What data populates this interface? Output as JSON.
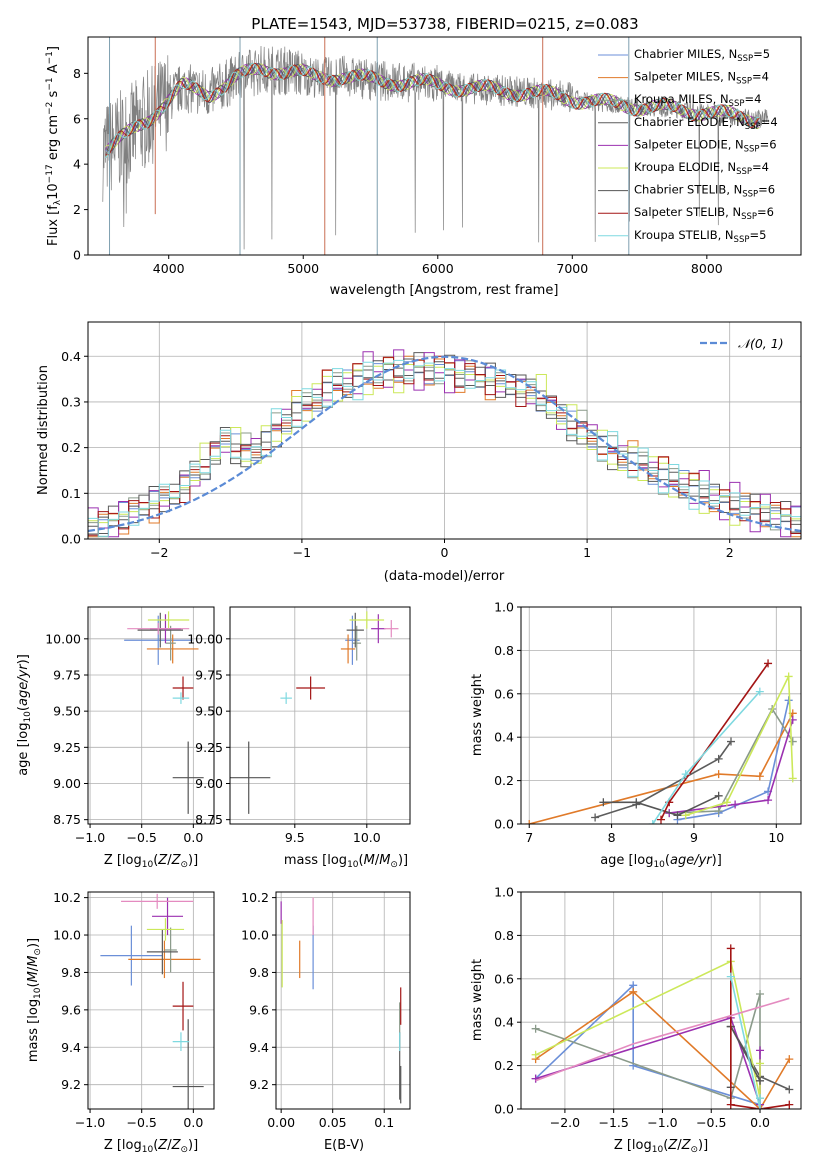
{
  "figure": {
    "title": "PLATE=1543, MJD=53738, FIBERID=0215, z=0.083"
  },
  "colors": {
    "series": [
      "#6b8fd8",
      "#e07a29",
      "#8a9a8a",
      "#5c5c5c",
      "#9b30b0",
      "#cce85a",
      "#555555",
      "#a31515",
      "#7fd9e0"
    ],
    "spectrum": "#808080",
    "gaussian": "#5b8bd6",
    "grid": "#b0b0b0"
  },
  "legend_spectrum": [
    {
      "base": "Chabrier MILES, N",
      "sub": "SSP",
      "tail": "=5"
    },
    {
      "base": "Salpeter MILES, N",
      "sub": "SSP",
      "tail": "=4"
    },
    {
      "base": "Kroupa MILES, N",
      "sub": "SSP",
      "tail": "=4"
    },
    {
      "base": "Chabrier ELODIE, N",
      "sub": "SSP",
      "tail": "=4"
    },
    {
      "base": "Salpeter ELODIE, N",
      "sub": "SSP",
      "tail": "=6"
    },
    {
      "base": "Kroupa ELODIE, N",
      "sub": "SSP",
      "tail": "=4"
    },
    {
      "base": "Chabrier STELIB, N",
      "sub": "SSP",
      "tail": "=6"
    },
    {
      "base": "Salpeter STELIB, N",
      "sub": "SSP",
      "tail": "=6"
    },
    {
      "base": "Kroupa STELIB, N",
      "sub": "SSP",
      "tail": "=5"
    }
  ],
  "legend_gaussian": "𝒩(0, 1)",
  "chart_data": [
    {
      "id": "spectrum",
      "type": "line",
      "xlabel": "wavelength [Angstrom, rest frame]",
      "ylabel": "Flux [fλ10⁻¹⁷ erg cm⁻² s⁻¹ A⁻¹]",
      "xlim": [
        3400,
        8700
      ],
      "ylim": [
        0,
        9.6
      ],
      "xticks": [
        4000,
        5000,
        6000,
        7000,
        8000
      ],
      "yticks": [
        0,
        2,
        4,
        6,
        8
      ],
      "data_x": [
        3550,
        3700,
        3850,
        3950,
        4100,
        4300,
        4500,
        4700,
        4900,
        5100,
        5300,
        5500,
        5800,
        6000,
        6300,
        6600,
        6900,
        7200,
        7400,
        7600,
        7800,
        8000,
        8200,
        8400
      ],
      "data_y": [
        4.7,
        5.3,
        6.0,
        6.6,
        7.4,
        7.1,
        7.8,
        8.2,
        8.1,
        7.8,
        7.9,
        7.7,
        7.6,
        7.5,
        7.3,
        7.2,
        7.0,
        6.7,
        6.6,
        6.5,
        6.4,
        6.3,
        6.1,
        6.0
      ]
    },
    {
      "id": "residuals",
      "type": "bar",
      "xlabel": "(data-model)/error",
      "ylabel": "Normed distribution",
      "xlim": [
        -2.5,
        2.5
      ],
      "ylim": [
        0,
        0.475
      ],
      "xticks": [
        -2,
        -1,
        0,
        1,
        2
      ],
      "yticks": [
        0.0,
        0.1,
        0.2,
        0.3,
        0.4
      ],
      "bin_width": 0.1,
      "bin_start": -2.5,
      "values": [
        0.03,
        0.03,
        0.04,
        0.05,
        0.06,
        0.07,
        0.08,
        0.09,
        0.1,
        0.12,
        0.14,
        0.16,
        0.19,
        0.22,
        0.2,
        0.19,
        0.19,
        0.21,
        0.24,
        0.26,
        0.28,
        0.29,
        0.31,
        0.33,
        0.34,
        0.34,
        0.35,
        0.36,
        0.36,
        0.37,
        0.37,
        0.37,
        0.37,
        0.37,
        0.37,
        0.37,
        0.36,
        0.36,
        0.35,
        0.35,
        0.34,
        0.34,
        0.33,
        0.32,
        0.31,
        0.29,
        0.27,
        0.25,
        0.24,
        0.22,
        0.2,
        0.19,
        0.18,
        0.17,
        0.16,
        0.15,
        0.14,
        0.13,
        0.12,
        0.11,
        0.1,
        0.09,
        0.08,
        0.08,
        0.07,
        0.06,
        0.06,
        0.05,
        0.05,
        0.04
      ],
      "series_offsets": [
        0.0,
        0.015,
        -0.012,
        0.008,
        -0.02,
        0.02,
        -0.005,
        0.01,
        -0.015
      ]
    },
    {
      "id": "age-vs-Z",
      "type": "scatter",
      "xlabel": "Z [log10(Z/Z⊙)]",
      "ylabel": "age [log10(age/yr)]",
      "xlim": [
        -1.02,
        0.2
      ],
      "ylim": [
        8.72,
        10.22
      ],
      "xticks": [
        -1.0,
        -0.5,
        0.0
      ],
      "yticks": [
        8.75,
        9.0,
        9.25,
        9.5,
        9.75,
        10.0
      ],
      "points": [
        {
          "x": -0.34,
          "y": 9.99,
          "xerr": 0.33,
          "yerr": 0.17
        },
        {
          "x": -0.2,
          "y": 9.93,
          "xerr": 0.25,
          "yerr": 0.1
        },
        {
          "x": -0.22,
          "y": 9.97,
          "xerr": 0.05,
          "yerr": 0.12
        },
        {
          "x": -0.32,
          "y": 10.06,
          "xerr": 0.22,
          "yerr": 0.12
        },
        {
          "x": -0.27,
          "y": 10.07,
          "xerr": 0.15,
          "yerr": 0.1
        },
        {
          "x": -0.24,
          "y": 10.13,
          "xerr": 0.2,
          "yerr": 0.06
        },
        {
          "x": -0.05,
          "y": 9.04,
          "xerr": 0.15,
          "yerr": 0.25
        },
        {
          "x": -0.1,
          "y": 9.66,
          "xerr": 0.1,
          "yerr": 0.08
        },
        {
          "x": -0.12,
          "y": 9.59,
          "xerr": 0.08,
          "yerr": 0.04
        },
        {
          "x": -0.34,
          "y": 10.07,
          "xerr": 0.3,
          "yerr": 0.04
        }
      ]
    },
    {
      "id": "age-vs-mass",
      "type": "scatter",
      "xlabel": "mass [log10(M/M⊙)]",
      "ylabel": "",
      "xlim": [
        9.05,
        10.3
      ],
      "ylim": [
        8.72,
        10.22
      ],
      "xticks": [
        9.5,
        10.0
      ],
      "yticks": [
        8.75,
        9.0,
        9.25,
        9.5,
        9.75,
        10.0
      ],
      "points": [
        {
          "x": 9.9,
          "y": 9.99,
          "xerr": 0.05,
          "yerr": 0.17
        },
        {
          "x": 9.87,
          "y": 9.93,
          "xerr": 0.05,
          "yerr": 0.1
        },
        {
          "x": 9.93,
          "y": 9.97,
          "xerr": 0.03,
          "yerr": 0.12
        },
        {
          "x": 9.92,
          "y": 10.06,
          "xerr": 0.06,
          "yerr": 0.12
        },
        {
          "x": 10.08,
          "y": 10.07,
          "xerr": 0.05,
          "yerr": 0.1
        },
        {
          "x": 10.0,
          "y": 10.13,
          "xerr": 0.12,
          "yerr": 0.06
        },
        {
          "x": 9.18,
          "y": 9.04,
          "xerr": 0.15,
          "yerr": 0.25
        },
        {
          "x": 9.61,
          "y": 9.66,
          "xerr": 0.1,
          "yerr": 0.08
        },
        {
          "x": 9.44,
          "y": 9.59,
          "xerr": 0.04,
          "yerr": 0.04
        },
        {
          "x": 10.17,
          "y": 10.07,
          "xerr": 0.05,
          "yerr": 0.06
        }
      ]
    },
    {
      "id": "weight-vs-age",
      "type": "line",
      "xlabel": "age [log10(age/yr)]",
      "ylabel": "mass weight",
      "xlim": [
        6.9,
        10.3
      ],
      "ylim": [
        0,
        1.0
      ],
      "xticks": [
        7,
        8,
        9,
        10
      ],
      "yticks": [
        0.0,
        0.2,
        0.4,
        0.6,
        0.8,
        1.0
      ],
      "series": [
        {
          "x": [
            8.8,
            9.3,
            9.9,
            10.15
          ],
          "y": [
            0.02,
            0.05,
            0.15,
            0.57
          ]
        },
        {
          "x": [
            7.0,
            9.3,
            9.8,
            10.2
          ],
          "y": [
            0.0,
            0.23,
            0.22,
            0.51
          ]
        },
        {
          "x": [
            8.7,
            9.3,
            9.95,
            10.2
          ],
          "y": [
            0.05,
            0.06,
            0.53,
            0.38
          ]
        },
        {
          "x": [
            7.8,
            8.3,
            9.3,
            9.45
          ],
          "y": [
            0.03,
            0.09,
            0.3,
            0.38
          ]
        },
        {
          "x": [
            8.7,
            9.5,
            9.9,
            10.2
          ],
          "y": [
            0.05,
            0.09,
            0.11,
            0.48
          ]
        },
        {
          "x": [
            8.9,
            9.4,
            10.15,
            10.2
          ],
          "y": [
            0.04,
            0.1,
            0.68,
            0.21
          ]
        },
        {
          "x": [
            7.9,
            8.3,
            8.8,
            9.3
          ],
          "y": [
            0.1,
            0.1,
            0.04,
            0.13
          ]
        },
        {
          "x": [
            8.6,
            8.7,
            9.9
          ],
          "y": [
            0.02,
            0.1,
            0.74
          ]
        },
        {
          "x": [
            8.5,
            8.9,
            9.8
          ],
          "y": [
            0.0,
            0.23,
            0.61
          ]
        }
      ]
    },
    {
      "id": "mass-vs-Z",
      "type": "scatter",
      "xlabel": "Z [log10(Z/Z⊙)]",
      "ylabel": "mass [log10(M/M⊙)]",
      "xlim": [
        -1.02,
        0.2
      ],
      "ylim": [
        9.07,
        10.23
      ],
      "xticks": [
        -1.0,
        -0.5,
        0.0
      ],
      "yticks": [
        9.2,
        9.4,
        9.6,
        9.8,
        10.0,
        10.2
      ],
      "points": [
        {
          "x": -0.6,
          "y": 9.89,
          "xerr": 0.3,
          "yerr": 0.16
        },
        {
          "x": -0.28,
          "y": 9.87,
          "xerr": 0.35,
          "yerr": 0.1
        },
        {
          "x": -0.22,
          "y": 9.92,
          "xerr": 0.06,
          "yerr": 0.12
        },
        {
          "x": -0.3,
          "y": 9.91,
          "xerr": 0.15,
          "yerr": 0.12
        },
        {
          "x": -0.25,
          "y": 10.1,
          "xerr": 0.15,
          "yerr": 0.1
        },
        {
          "x": -0.27,
          "y": 10.03,
          "xerr": 0.18,
          "yerr": 0.06
        },
        {
          "x": -0.05,
          "y": 9.19,
          "xerr": 0.15,
          "yerr": 0.36
        },
        {
          "x": -0.1,
          "y": 9.62,
          "xerr": 0.1,
          "yerr": 0.13
        },
        {
          "x": -0.12,
          "y": 9.43,
          "xerr": 0.08,
          "yerr": 0.05
        },
        {
          "x": -0.35,
          "y": 10.18,
          "xerr": 0.35,
          "yerr": 0.04
        }
      ]
    },
    {
      "id": "mass-vs-EBV",
      "type": "scatter",
      "xlabel": "E(B-V)",
      "ylabel": "",
      "xlim": [
        -0.005,
        0.125
      ],
      "ylim": [
        9.07,
        10.23
      ],
      "xticks": [
        0.0,
        0.05,
        0.1
      ],
      "yticks": [
        9.2,
        9.4,
        9.6,
        9.8,
        10.0,
        10.2
      ],
      "points": [
        {
          "x": 0.031,
          "y": 9.88,
          "xerr": 0.0,
          "yerr": 0.17
        },
        {
          "x": 0.018,
          "y": 9.87,
          "xerr": 0.0,
          "yerr": 0.1
        },
        {
          "x": 0.115,
          "y": 9.52,
          "xerr": 0.0,
          "yerr": 0.12
        },
        {
          "x": 0.115,
          "y": 9.3,
          "xerr": 0.0,
          "yerr": 0.18
        },
        {
          "x": 0.0,
          "y": 10.12,
          "xerr": 0.0,
          "yerr": 0.06
        },
        {
          "x": 0.001,
          "y": 9.9,
          "xerr": 0.0,
          "yerr": 0.18
        },
        {
          "x": 0.116,
          "y": 9.2,
          "xerr": 0.0,
          "yerr": 0.1
        },
        {
          "x": 0.116,
          "y": 9.62,
          "xerr": 0.0,
          "yerr": 0.1
        },
        {
          "x": 0.115,
          "y": 9.43,
          "xerr": 0.0,
          "yerr": 0.05
        },
        {
          "x": 0.031,
          "y": 10.1,
          "xerr": 0.0,
          "yerr": 0.1
        }
      ]
    },
    {
      "id": "weight-vs-Z",
      "type": "line",
      "xlabel": "Z [log10(Z/Z⊙)]",
      "ylabel": "mass weight",
      "xlim": [
        -2.45,
        0.42
      ],
      "ylim": [
        0,
        1.0
      ],
      "xticks": [
        -2.0,
        -1.5,
        -1.0,
        -0.5,
        0.0
      ],
      "yticks": [
        0.0,
        0.2,
        0.4,
        0.6,
        0.8,
        1.0
      ],
      "series": [
        {
          "x": [
            -2.3,
            -1.3,
            -1.3,
            0.0
          ],
          "y": [
            0.14,
            0.57,
            0.2,
            0.02
          ]
        },
        {
          "x": [
            -2.3,
            -1.3,
            0.0,
            0.3
          ],
          "y": [
            0.23,
            0.54,
            0.0,
            0.23
          ]
        },
        {
          "x": [
            -2.3,
            -0.3,
            0.0,
            0.0
          ],
          "y": [
            0.37,
            0.05,
            0.53,
            0.05
          ]
        },
        {
          "x": [
            -0.3,
            0.0,
            0.3
          ],
          "y": [
            0.38,
            0.15,
            0.09
          ]
        },
        {
          "x": [
            -2.3,
            -0.3,
            0.0,
            0.0
          ],
          "y": [
            0.14,
            0.42,
            0.02,
            0.27
          ]
        },
        {
          "x": [
            -2.3,
            -0.3,
            0.0,
            0.0
          ],
          "y": [
            0.25,
            0.68,
            0.05,
            0.21
          ]
        },
        {
          "x": [
            -0.3,
            -0.3,
            0.0
          ],
          "y": [
            0.1,
            0.38,
            0.13
          ]
        },
        {
          "x": [
            -0.3,
            -0.3,
            0.0,
            0.3
          ],
          "y": [
            0.74,
            0.02,
            0.0,
            0.02
          ]
        },
        {
          "x": [
            -0.3,
            0.0,
            0.0
          ],
          "y": [
            0.61,
            0.0,
            0.05
          ]
        }
      ],
      "extra_pink": {
        "x": [
          -2.3,
          -1.3,
          -0.3,
          0.3
        ],
        "y": [
          0.13,
          0.3,
          0.43,
          0.51
        ]
      }
    }
  ]
}
